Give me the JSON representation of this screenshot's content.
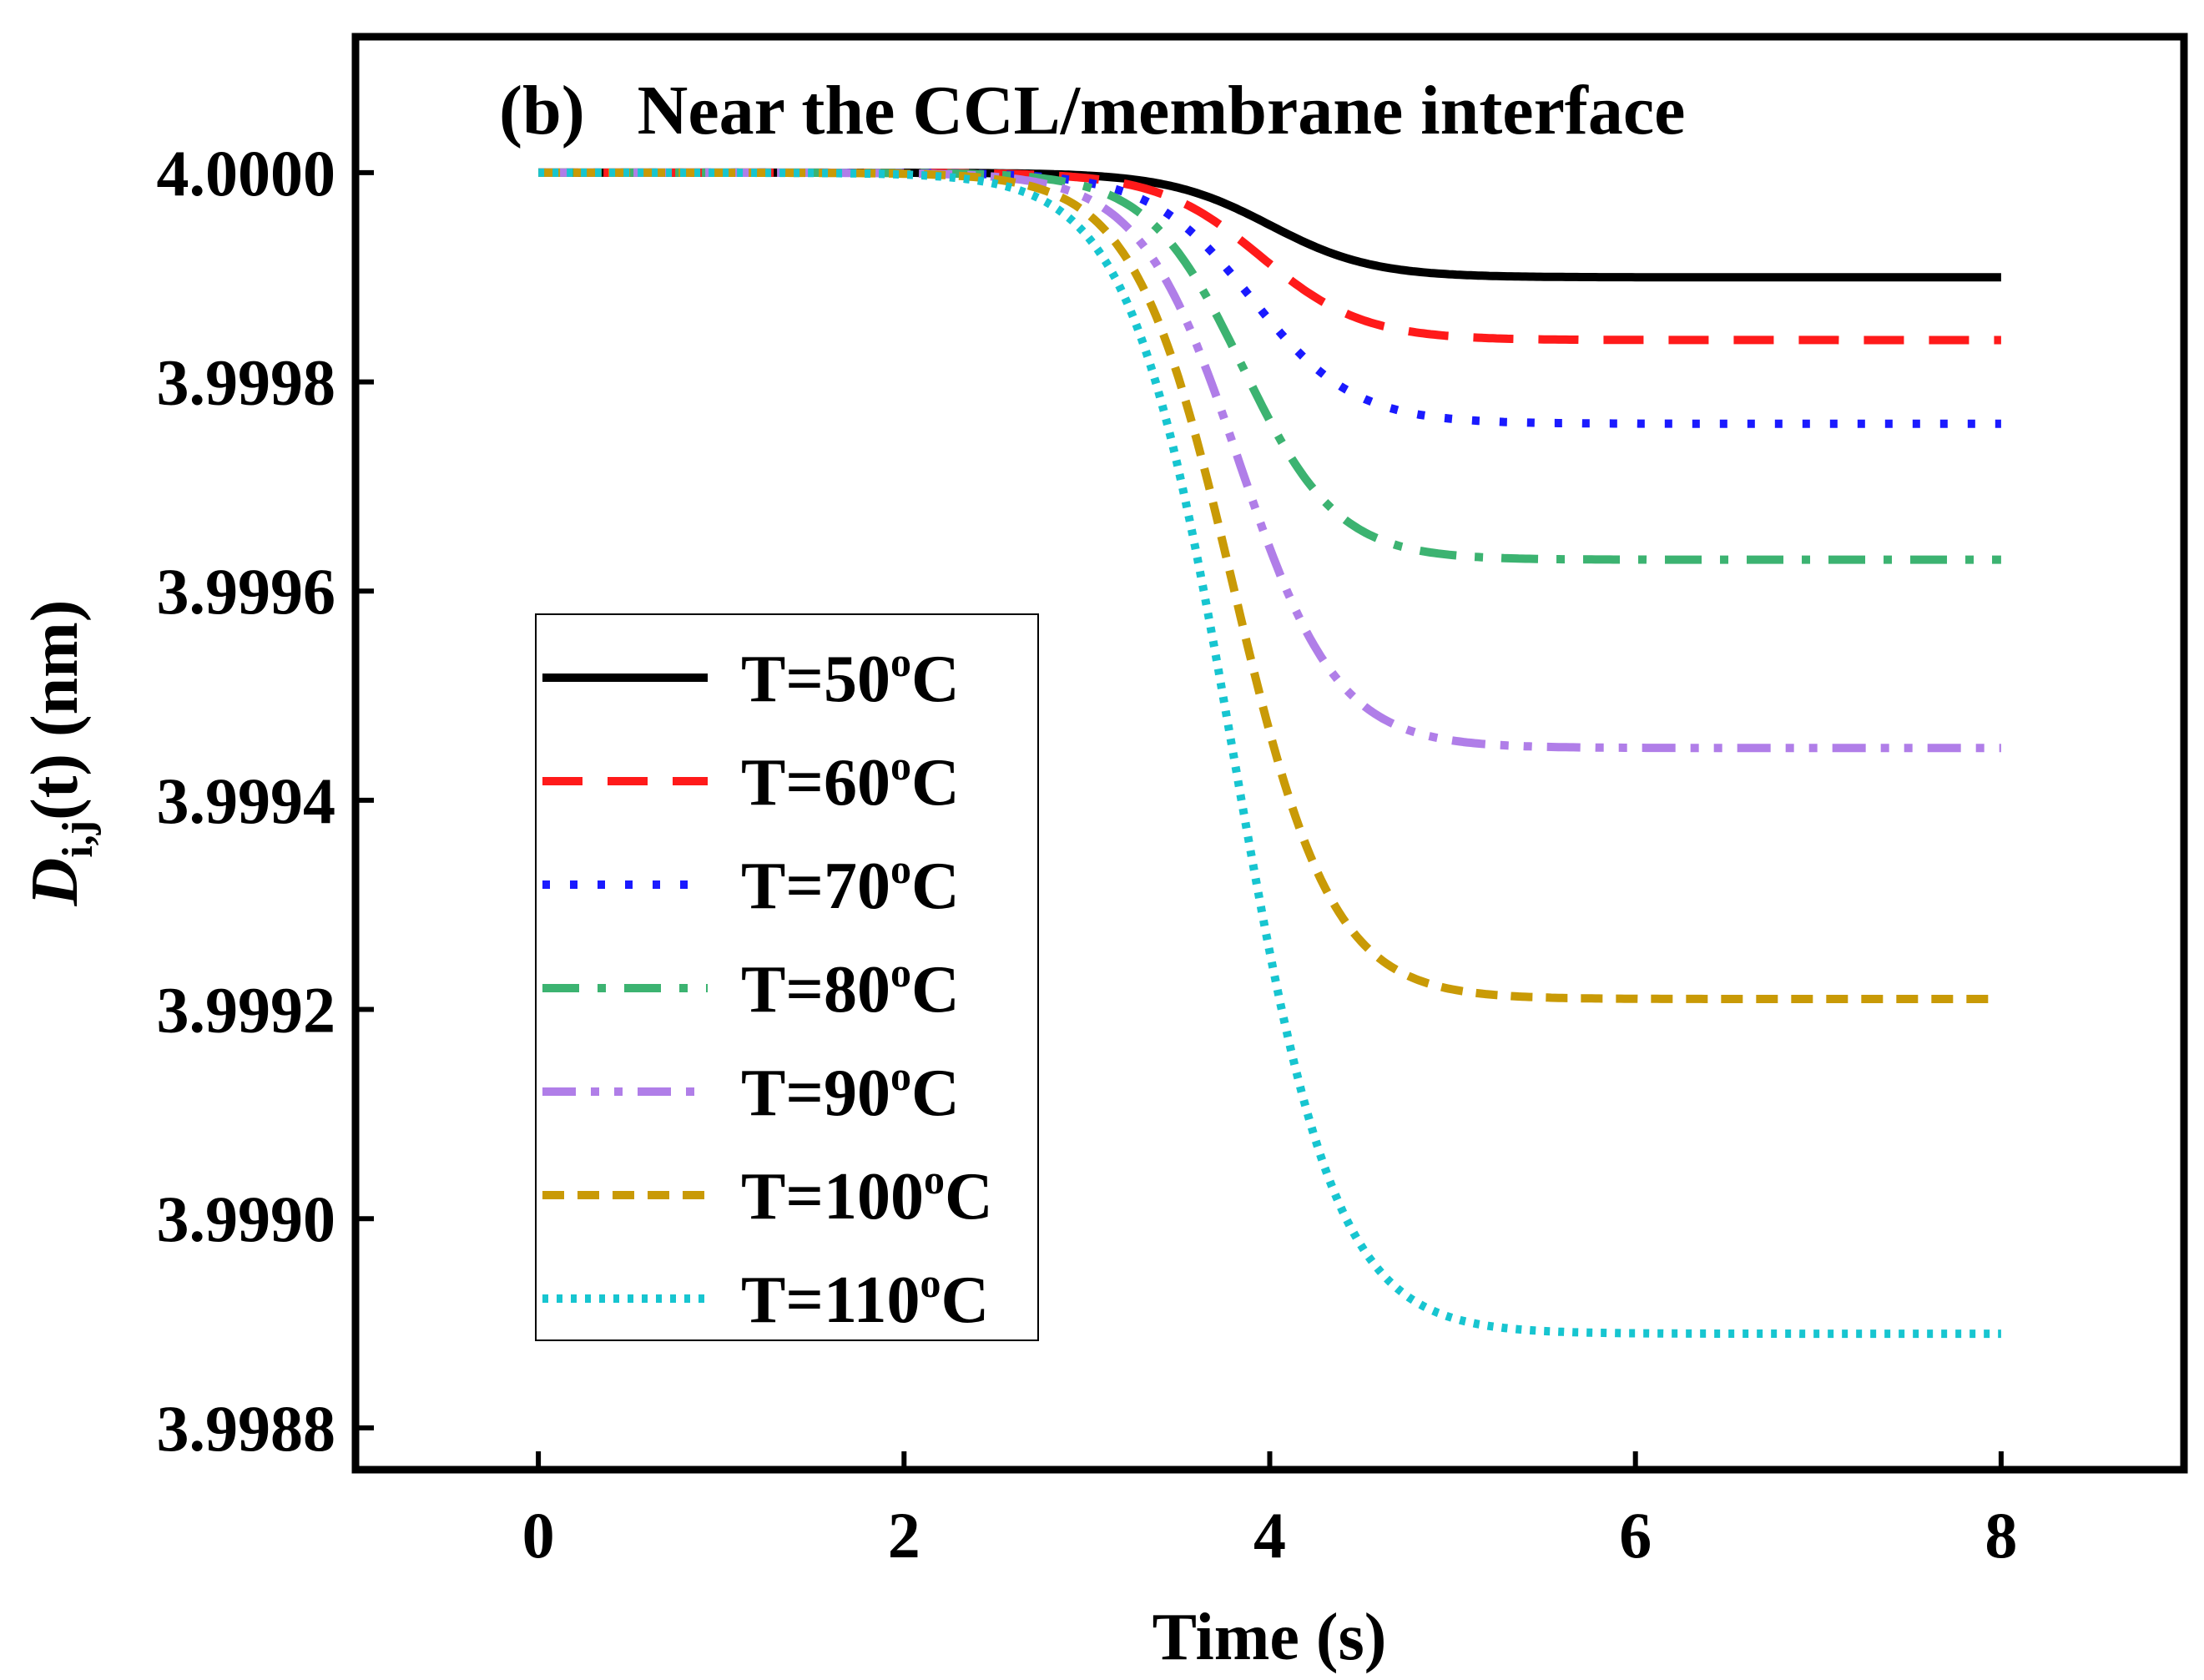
{
  "chart_data": {
    "type": "line",
    "title": "(b)   Near the CCL/membrane interface",
    "xlabel": "Time (s)",
    "ylabel": {
      "symbol": "D",
      "subscript": "i,j",
      "rest": "(t) (nm)"
    },
    "xlim": [
      -1,
      9
    ],
    "ylim": [
      3.99876,
      4.00013
    ],
    "xticks": [
      0,
      2,
      4,
      6,
      8
    ],
    "xtick_labels": [
      "0",
      "2",
      "4",
      "6",
      "8"
    ],
    "yticks": [
      3.9988,
      3.999,
      3.9992,
      3.9994,
      3.9996,
      3.9998,
      4.0
    ],
    "ytick_labels": [
      "3.9988",
      "3.9990",
      "3.9992",
      "3.9994",
      "3.9996",
      "3.9998",
      "4.0000"
    ],
    "grid": false,
    "legend_position": "center-left",
    "series": [
      {
        "name": "T=50oC",
        "label_main": "T=50",
        "label_sup": "o",
        "label_unit": "C",
        "color": "#000000",
        "style": "solid",
        "t0": 4.0,
        "tau": 0.28,
        "plateau": 3.9999
      },
      {
        "name": "T=60oC",
        "label_main": "T=60",
        "label_sup": "o",
        "label_unit": "C",
        "color": "#ff1a1a",
        "style": "dash",
        "t0": 3.95,
        "tau": 0.28,
        "plateau": 3.99984
      },
      {
        "name": "T=70oC",
        "label_main": "T=70",
        "label_sup": "o",
        "label_unit": "C",
        "color": "#1a1aff",
        "style": "dot",
        "t0": 3.9,
        "tau": 0.28,
        "plateau": 3.99976
      },
      {
        "name": "T=80oC",
        "label_main": "T=80",
        "label_sup": "o",
        "label_unit": "C",
        "color": "#3cb371",
        "style": "dashdot",
        "t0": 3.85,
        "tau": 0.26,
        "plateau": 3.99963
      },
      {
        "name": "T=90oC",
        "label_main": "T=90",
        "label_sup": "o",
        "label_unit": "C",
        "color": "#b07ee8",
        "style": "dashdotdot",
        "t0": 3.83,
        "tau": 0.27,
        "plateau": 3.99945
      },
      {
        "name": "T=100oC",
        "label_main": "T=100",
        "label_sup": "o",
        "label_unit": "C",
        "color": "#c99a06",
        "style": "shortdash",
        "t0": 3.8,
        "tau": 0.27,
        "plateau": 3.99921
      },
      {
        "name": "T=110oC",
        "label_main": "T=110",
        "label_sup": "o",
        "label_unit": "C",
        "color": "#17c5d0",
        "style": "densedot",
        "t0": 3.8,
        "tau": 0.28,
        "plateau": 3.99889
      }
    ]
  }
}
